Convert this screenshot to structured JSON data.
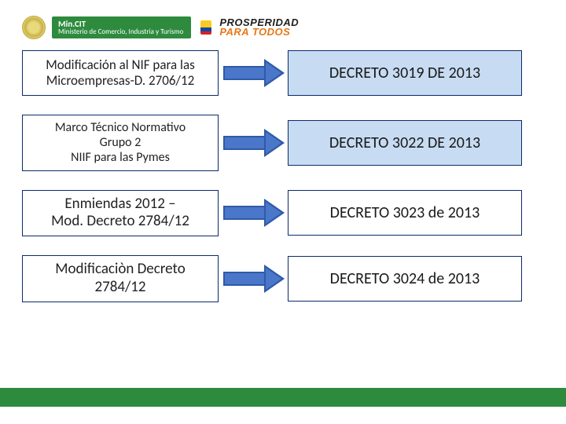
{
  "header": {
    "mincit_top": "Min.CIT",
    "mincit_sub": "Ministerio de Comercio, Industria y Turismo",
    "prosperidad_l1": "PROSPERIDAD",
    "prosperidad_l2": "PARA TODOS"
  },
  "rows": [
    {
      "left_html": "Modificación al NIF para las<br>Microempresas-D. 2706/12",
      "right": "DECRETO 3019 DE 2013",
      "right_fill": true,
      "left_fontsize": 17
    },
    {
      "left_html": "Marco Técnico Normativo<br>Grupo 2<br>NIIF para las Pymes",
      "right": "DECRETO 3022 DE 2013",
      "right_fill": true,
      "left_fontsize": 16
    },
    {
      "left_html": "Enmiendas 2012 –<br>Mod. Decreto 2784/12",
      "right": "DECRETO 3023 de 2013",
      "right_fill": false,
      "left_fontsize": 19
    },
    {
      "left_html": "Modificaciòn Decreto<br>2784/12",
      "right": "DECRETO 3024 de 2013",
      "right_fill": false,
      "left_fontsize": 19
    }
  ],
  "colors": {
    "box_border": "#0b2a6b",
    "right_fill_bg": "#c7dcf2",
    "arrow_fill": "#4a77c9",
    "arrow_stroke": "#2f5aa8",
    "footer_bar": "#2e8b3e",
    "mincit_bg": "#2e8b3e"
  }
}
